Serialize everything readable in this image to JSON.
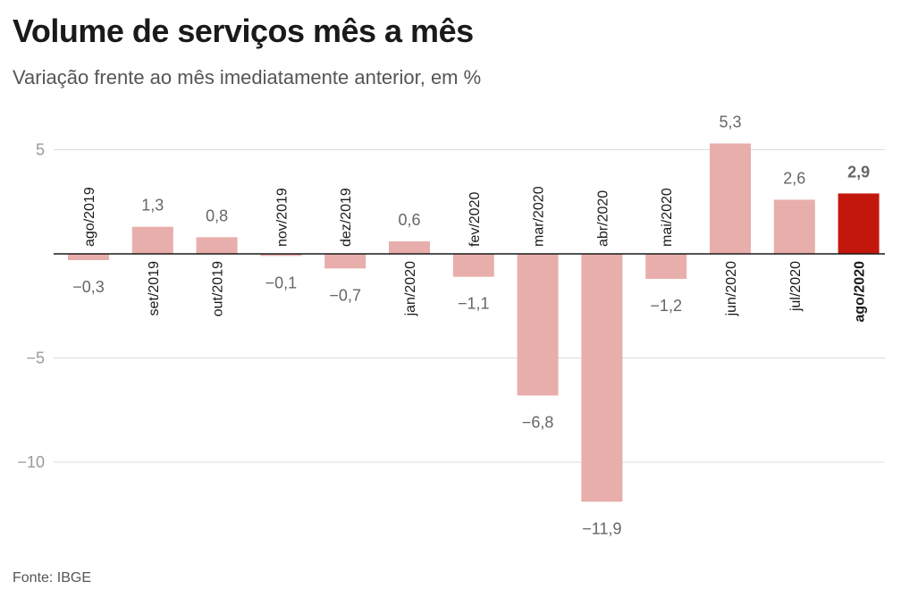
{
  "chart_data": {
    "type": "bar",
    "title": "Volume de serviços mês a mês",
    "subtitle": "Variação frente ao mês imediatamente anterior, em %",
    "categories": [
      "ago/2019",
      "set/2019",
      "out/2019",
      "nov/2019",
      "dez/2019",
      "jan/2020",
      "fev/2020",
      "mar/2020",
      "abr/2020",
      "mai/2020",
      "jun/2020",
      "jul/2020",
      "ago/2020"
    ],
    "values": [
      -0.3,
      1.3,
      0.8,
      -0.1,
      -0.7,
      0.6,
      -1.1,
      -6.8,
      -11.9,
      -1.2,
      5.3,
      2.6,
      2.9
    ],
    "value_labels": [
      "−0,3",
      "1,3",
      "0,8",
      "−0,1",
      "−0,7",
      "0,6",
      "−1,1",
      "−6,8",
      "−11,9",
      "−1,2",
      "5,3",
      "2,6",
      "2,9"
    ],
    "yticks": [
      5,
      -5,
      -10
    ],
    "ytick_labels": [
      "5",
      "−5",
      "−10"
    ],
    "ylim": [
      -12.5,
      6
    ],
    "highlight_index": 12,
    "colors": {
      "bar": "#e8aeab",
      "highlight": "#c4170c",
      "grid": "#dddddd",
      "axis": "#1a1a1a"
    },
    "grid": true,
    "source": "Fonte: IBGE"
  }
}
